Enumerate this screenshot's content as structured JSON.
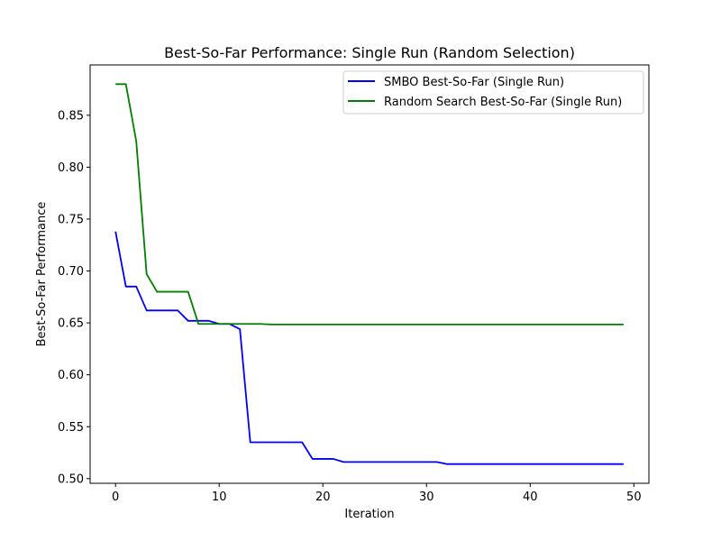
{
  "chart_data": {
    "type": "line",
    "title": "Best-So-Far Performance: Single Run (Random Selection)",
    "xlabel": "Iteration",
    "ylabel": "Best-So-Far Performance",
    "xlim": [
      -2.45,
      51.45
    ],
    "ylim": [
      0.4955,
      0.8985
    ],
    "xticks": [
      0,
      10,
      20,
      30,
      40,
      50
    ],
    "xtick_labels": [
      "0",
      "10",
      "20",
      "30",
      "40",
      "50"
    ],
    "yticks": [
      0.5,
      0.55,
      0.6,
      0.65,
      0.7,
      0.75,
      0.8,
      0.85
    ],
    "ytick_labels": [
      "0.50",
      "0.55",
      "0.60",
      "0.65",
      "0.70",
      "0.75",
      "0.80",
      "0.85"
    ],
    "grid": false,
    "legend_position": "top-right",
    "series": [
      {
        "name": "SMBO Best-So-Far (Single Run)",
        "color": "#0000ff",
        "x": [
          0,
          1,
          2,
          3,
          4,
          5,
          6,
          7,
          8,
          9,
          10,
          11,
          12,
          13,
          14,
          15,
          16,
          17,
          18,
          19,
          20,
          21,
          22,
          23,
          24,
          25,
          26,
          27,
          28,
          29,
          30,
          31,
          32,
          33,
          34,
          35,
          36,
          37,
          38,
          39,
          40,
          41,
          42,
          43,
          44,
          45,
          46,
          47,
          48,
          49
        ],
        "values": [
          0.738,
          0.685,
          0.685,
          0.662,
          0.662,
          0.662,
          0.662,
          0.652,
          0.652,
          0.652,
          0.649,
          0.649,
          0.644,
          0.535,
          0.535,
          0.535,
          0.535,
          0.535,
          0.535,
          0.519,
          0.519,
          0.519,
          0.516,
          0.516,
          0.516,
          0.516,
          0.516,
          0.516,
          0.516,
          0.516,
          0.516,
          0.516,
          0.514,
          0.514,
          0.514,
          0.514,
          0.514,
          0.514,
          0.514,
          0.514,
          0.514,
          0.514,
          0.514,
          0.514,
          0.514,
          0.514,
          0.514,
          0.514,
          0.514,
          0.514
        ]
      },
      {
        "name": "Random Search Best-So-Far (Single Run)",
        "color": "#008000",
        "x": [
          0,
          1,
          2,
          3,
          4,
          5,
          6,
          7,
          8,
          9,
          10,
          11,
          12,
          13,
          14,
          15,
          16,
          17,
          18,
          19,
          20,
          21,
          22,
          23,
          24,
          25,
          26,
          27,
          28,
          29,
          30,
          31,
          32,
          33,
          34,
          35,
          36,
          37,
          38,
          39,
          40,
          41,
          42,
          43,
          44,
          45,
          46,
          47,
          48,
          49
        ],
        "values": [
          0.88,
          0.88,
          0.825,
          0.697,
          0.68,
          0.68,
          0.68,
          0.68,
          0.649,
          0.649,
          0.649,
          0.649,
          0.649,
          0.649,
          0.649,
          0.6485,
          0.6485,
          0.6485,
          0.6485,
          0.6485,
          0.6485,
          0.6485,
          0.6485,
          0.6485,
          0.6485,
          0.6485,
          0.6485,
          0.6485,
          0.6485,
          0.6485,
          0.6485,
          0.6485,
          0.6485,
          0.6485,
          0.6485,
          0.6485,
          0.6485,
          0.6485,
          0.6485,
          0.6485,
          0.6485,
          0.6485,
          0.6485,
          0.6485,
          0.6485,
          0.6485,
          0.6485,
          0.6485,
          0.6485,
          0.6485
        ]
      }
    ]
  }
}
